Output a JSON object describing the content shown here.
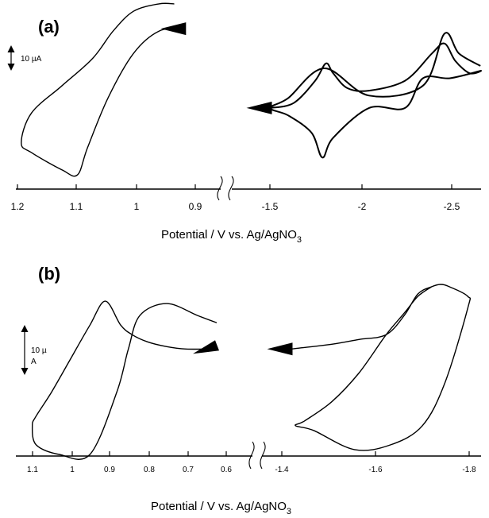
{
  "chart_data": [
    {
      "panel": "(a)",
      "type": "line",
      "chart_kind": "cyclic voltammogram",
      "xlabel": "Potential / V vs. Ag/AgNO",
      "xlabel_sub": "3",
      "scale_bar": "10 µA",
      "scale_bar_value_uA": 10,
      "axis_break": true,
      "x_reversed": true,
      "left_ticks": [
        "1.2",
        "1.1",
        "1",
        "0.9"
      ],
      "right_ticks": [
        "-1.5",
        "-2",
        "-2.5"
      ],
      "left_segment": {
        "xlim": [
          1.22,
          0.84
        ],
        "ylim_uA": [
          -40,
          35
        ],
        "start_marker": {
          "x": 0.88,
          "y": 26
        },
        "x": [
          0.88,
          0.93,
          0.98,
          1.03,
          1.07,
          1.09,
          1.12,
          1.18,
          1.2,
          1.18,
          1.12,
          1.06,
          1.02,
          0.98,
          0.93,
          0.9
        ],
        "y": [
          26,
          25,
          16,
          -2,
          -22,
          -33,
          -31,
          -24,
          -20,
          -8,
          3,
          14,
          25,
          33,
          36,
          36
        ]
      },
      "right_segment": {
        "xlim": [
          -1.28,
          -2.65
        ],
        "ylim_uA": [
          -40,
          35
        ],
        "start_marker": {
          "x": -1.45,
          "y": -6
        },
        "x": [
          -1.45,
          -1.58,
          -1.7,
          -1.76,
          -1.8,
          -1.88,
          -2.0,
          -2.2,
          -2.35,
          -2.42,
          -2.48,
          -2.56,
          -2.62,
          -2.45,
          -2.3,
          -2.2,
          -2.0,
          -1.8,
          -1.74,
          -1.68,
          -1.55,
          -1.45,
          -1.55,
          -1.75,
          -2.0,
          -2.3,
          -2.42,
          -2.5,
          -2.62
        ],
        "y": [
          -6,
          -4,
          5,
          12,
          8,
          2,
          1,
          5,
          16,
          20,
          13,
          8,
          9,
          6,
          6,
          -6,
          -6,
          -18,
          -26,
          -16,
          -9,
          -6,
          -2,
          10,
          -1,
          3,
          24,
          16,
          11
        ]
      }
    },
    {
      "panel": "(b)",
      "type": "line",
      "chart_kind": "cyclic voltammogram",
      "xlabel": "Potential / V vs. Ag/AgNO",
      "xlabel_sub": "3",
      "scale_bar_line1": "10 µ",
      "scale_bar_line2": "A",
      "scale_bar_value_uA": 10,
      "axis_break": true,
      "x_reversed": true,
      "left_ticks": [
        "1.1",
        "1",
        "0.9",
        "0.8",
        "0.7",
        "0.6"
      ],
      "right_ticks": [
        "-1.4",
        "-1.6",
        "-1.8"
      ],
      "left_segment": {
        "xlim": [
          1.12,
          0.56
        ],
        "ylim_uA": [
          -20,
          15
        ],
        "start_marker": {
          "x": 0.62,
          "y": 3
        },
        "x": [
          0.62,
          0.7,
          0.75,
          0.8,
          0.84,
          0.87,
          0.91,
          0.95,
          1.0,
          1.05,
          1.09,
          1.1,
          1.09,
          1.03,
          0.95,
          0.88,
          0.85,
          0.82,
          0.75,
          0.67,
          0.62
        ],
        "y": [
          3,
          3,
          3.5,
          4.5,
          6,
          8,
          13,
          8,
          1,
          -6,
          -11,
          -13,
          -17,
          -19,
          -19,
          -6,
          3,
          10,
          12.5,
          10,
          8.5
        ]
      },
      "right_segment": {
        "xlim": [
          -1.36,
          -1.84
        ],
        "ylim_uA": [
          -20,
          15
        ],
        "start_marker": {
          "x": -1.41,
          "y": 3
        },
        "x": [
          -1.41,
          -1.5,
          -1.56,
          -1.62,
          -1.66,
          -1.69,
          -1.72,
          -1.74,
          -1.76,
          -1.8,
          -1.8,
          -1.75,
          -1.7,
          -1.63,
          -1.55,
          -1.46,
          -1.42,
          -1.44,
          -1.5,
          -1.56,
          -1.62,
          -1.66,
          -1.69,
          -1.72
        ],
        "y": [
          3,
          4,
          5,
          6,
          10,
          14.5,
          16,
          16.5,
          16,
          14,
          11.5,
          -4,
          -13,
          -17,
          -18,
          -14,
          -13,
          -12,
          -8,
          -2,
          6,
          10.5,
          14,
          16
        ]
      }
    }
  ]
}
